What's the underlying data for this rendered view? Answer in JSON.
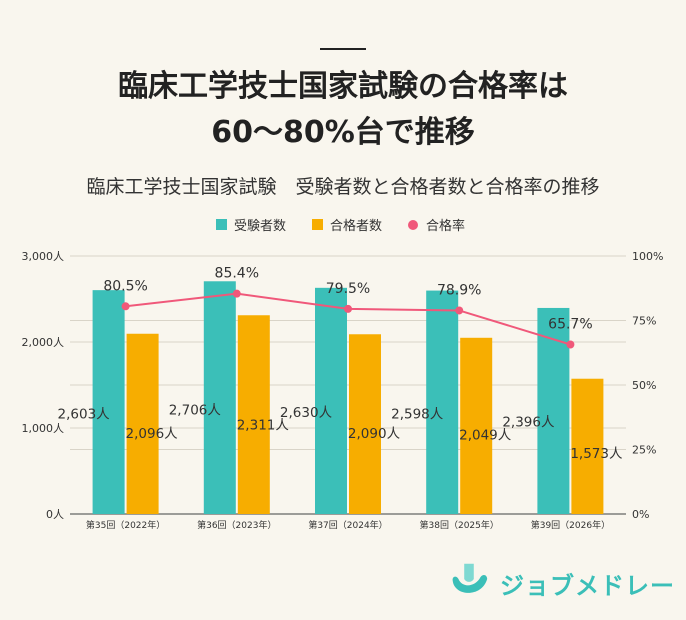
{
  "headline": {
    "line1": "臨床工学技士国家試験の合格率は",
    "line2": "60～80%台で推移"
  },
  "brand": {
    "name": "ジョブメドレー",
    "icon": "job-medley-logo-icon",
    "color": "#3bbfb8"
  },
  "chart_data": {
    "type": "bar",
    "title": "臨床工学技士国家試験　受験者数と合格者数と合格率の推移",
    "categories": [
      "第35回（2022年）",
      "第36回（2023年）",
      "第37回（2024年）",
      "第38回（2025年）",
      "第39回（2026年）"
    ],
    "series": [
      {
        "name": "受験者数",
        "type": "bar",
        "axis": "left",
        "color": "#3bbfb8",
        "values": [
          2603,
          2706,
          2630,
          2598,
          2396
        ],
        "labels": [
          "2,603人",
          "2,706人",
          "2,630人",
          "2,598人",
          "2,396人"
        ]
      },
      {
        "name": "合格者数",
        "type": "bar",
        "axis": "left",
        "color": "#f7ad00",
        "values": [
          2096,
          2311,
          2090,
          2049,
          1573
        ],
        "labels": [
          "2,096人",
          "2,311人",
          "2,090人",
          "2,049人",
          "1,573人"
        ]
      },
      {
        "name": "合格率",
        "type": "line",
        "axis": "right",
        "color": "#f0587a",
        "values": [
          80.5,
          85.4,
          79.5,
          78.9,
          65.7
        ],
        "labels": [
          "80.5%",
          "85.4%",
          "79.5%",
          "78.9%",
          "65.7%"
        ]
      }
    ],
    "y_left": {
      "ylim": [
        0,
        3000
      ],
      "ticks": [
        0,
        1000,
        2000,
        3000
      ],
      "tick_labels": [
        "0人",
        "1,000人",
        "2,000人",
        "3,000人"
      ]
    },
    "y_right": {
      "ylim": [
        0,
        100
      ],
      "ticks": [
        0,
        25,
        50,
        75,
        100
      ],
      "tick_labels": [
        "0%",
        "25%",
        "50%",
        "75%",
        "100%"
      ]
    },
    "grid": true,
    "legend": "top-center"
  }
}
